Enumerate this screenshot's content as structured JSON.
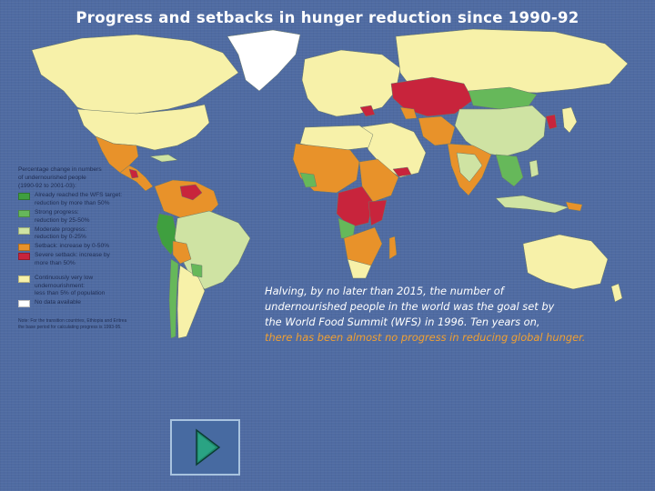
{
  "slide": {
    "title": "Progress and setbacks in hunger reduction since 1990-92"
  },
  "legend": {
    "heading_1": "Percentage change in numbers",
    "heading_2": "of undernourished people",
    "heading_3": "(1990-92 to 2001-03):",
    "items": [
      {
        "line1": "Already reached the WFS target:",
        "line2": "reduction by more than 50%",
        "color": "#3f9f3f"
      },
      {
        "line1": "Strong progress:",
        "line2": "reduction by 25-50%",
        "color": "#66b85a"
      },
      {
        "line1": "Moderate progress:",
        "line2": "reduction by 0-25%",
        "color": "#cfe3a3"
      },
      {
        "line1": "Setback: increase by 0-50%",
        "line2": "",
        "color": "#e8922a"
      },
      {
        "line1": "Severe setback: increase by",
        "line2": "more than 50%",
        "color": "#c8243c"
      },
      {
        "line1": "Continuously very low",
        "line2": "undernourishment:",
        "line3": "less than 5% of population",
        "color": "#f7f1a9"
      },
      {
        "line1": "No data available",
        "line2": "",
        "color": "#ffffff"
      }
    ],
    "note_1": "Note: For the transition countries, Ethiopia and Eritrea",
    "note_2": "the base period for calculating progress is 1993-95."
  },
  "caption": {
    "line1": "Halving, by no later than 2015, the number of",
    "line2": "undernourished people in the world was the goal set by",
    "line3": "the World Food Summit (WFS) in 1996. Ten years on,",
    "line4": "there has been almost no progress in reducing global hunger."
  },
  "colors": {
    "background": "#4f6ba2",
    "very_low": "#f7f1a9",
    "moderate": "#cfe3a3",
    "strong": "#66b85a",
    "reached": "#3f9f3f",
    "setback": "#e8922a",
    "severe": "#c8243c",
    "no_data": "#ffffff",
    "caption_highlight": "#f0a033"
  },
  "nav": {
    "icon": "play-triangle-icon"
  }
}
